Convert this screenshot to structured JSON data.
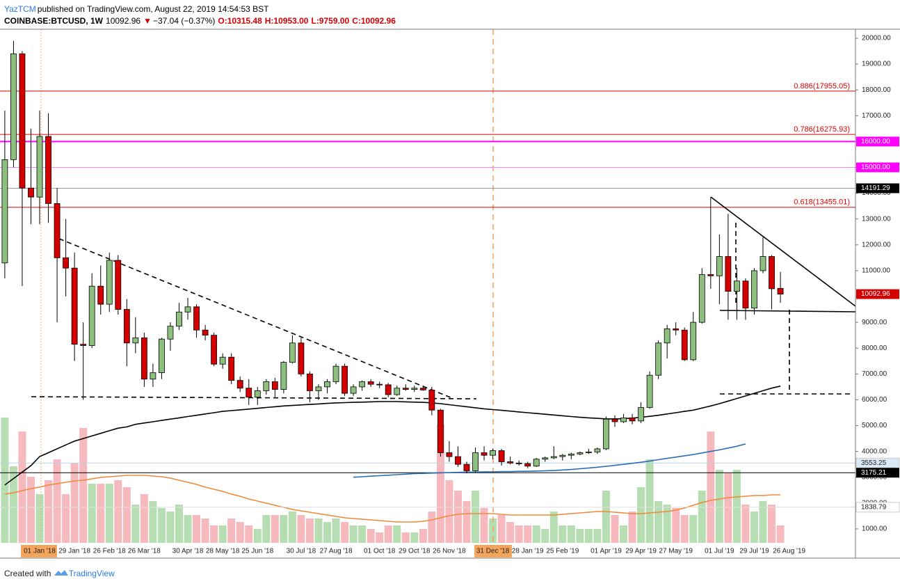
{
  "header": {
    "author": "YazTCM",
    "published": "published on TradingView.com, August 22, 2019 14:54:53 BST",
    "symbol": "COINBASE:BTCUSD, 1W",
    "last": "10092.96",
    "arrow": "▼",
    "change": "−37.04 (−0.37%)",
    "o": "O:10315.48",
    "h": "H:10953.00",
    "l": "L:9759.00",
    "c": "C:10092.96"
  },
  "footer": {
    "created": "Created with",
    "brand": "TradingView"
  },
  "chart_data": {
    "type": "candlestick",
    "categories": [
      null,
      null,
      null,
      null,
      "01 Jan '18",
      null,
      null,
      null,
      "29 Jan '18",
      null,
      null,
      null,
      "26 Feb '18",
      null,
      null,
      null,
      "26 Mar '18",
      null,
      null,
      null,
      null,
      "30 Apr '18",
      null,
      null,
      null,
      "28 May '18",
      null,
      null,
      null,
      "25 Jun '18",
      null,
      null,
      null,
      null,
      "30 Jul '18",
      null,
      null,
      null,
      "27 Aug '18",
      null,
      null,
      null,
      null,
      "01 Oct '18",
      null,
      null,
      null,
      "29 Oct '18",
      null,
      null,
      null,
      "26 Nov '18",
      null,
      null,
      null,
      null,
      "31 Dec '18",
      null,
      null,
      null,
      "28 Jan '19",
      null,
      null,
      null,
      "25 Feb '19",
      null,
      null,
      null,
      null,
      "01 Apr '19",
      null,
      null,
      null,
      "29 Apr '19",
      null,
      null,
      null,
      "27 May '19",
      null,
      null,
      null,
      null,
      "01 Jul '19",
      null,
      null,
      null,
      "29 Jul '19",
      null,
      null,
      null,
      "26 Aug '19"
    ],
    "open": [
      11300,
      15300,
      19400,
      14200,
      13850,
      16200,
      13600,
      11500,
      11100,
      8150,
      8100,
      10400,
      9700,
      11400,
      9500,
      8200,
      8400,
      6800,
      7050,
      8350,
      8850,
      9400,
      9600,
      8700,
      8500,
      7380,
      7650,
      6750,
      6450,
      6100,
      6350,
      6700,
      6400,
      7450,
      8200,
      7000,
      6350,
      6500,
      6700,
      7300,
      6250,
      6500,
      6700,
      6600,
      6580,
      6200,
      6450,
      6400,
      6450,
      6380,
      5600,
      3950,
      3800,
      3500,
      3250,
      3950,
      3850,
      4030,
      3600,
      3550,
      3530,
      3430,
      3700,
      3750,
      3800,
      3850,
      3900,
      3950,
      3980,
      4100,
      5250,
      5150,
      5300,
      5180,
      5700,
      6950,
      8200,
      8750,
      8700,
      7550,
      9000,
      10850,
      10800,
      11550,
      10200,
      10600,
      9550,
      11000,
      11550,
      10315.48,
      null
    ],
    "high": [
      17200,
      19900,
      19500,
      16500,
      17200,
      17100,
      14200,
      13000,
      11700,
      9000,
      10900,
      11200,
      11700,
      11600,
      9900,
      9200,
      8600,
      7400,
      8400,
      9000,
      9750,
      9950,
      9700,
      8900,
      8600,
      7800,
      7800,
      6900,
      6800,
      6500,
      6800,
      6850,
      7500,
      8500,
      8400,
      7100,
      6600,
      6800,
      7400,
      7400,
      6600,
      6750,
      6800,
      6700,
      6650,
      6550,
      6600,
      6550,
      6550,
      6500,
      5650,
      4400,
      4200,
      3600,
      4150,
      4200,
      4100,
      4100,
      3800,
      3650,
      3600,
      3750,
      3800,
      4200,
      3900,
      3950,
      4000,
      4100,
      4150,
      5350,
      5400,
      5450,
      5450,
      5900,
      7100,
      8300,
      8900,
      9000,
      8800,
      9400,
      11100,
      13850,
      12400,
      13200,
      11100,
      10700,
      11100,
      12300,
      11600,
      10953,
      null
    ],
    "low": [
      10700,
      15000,
      10400,
      12800,
      12800,
      12850,
      9000,
      10000,
      7500,
      6000,
      8000,
      9300,
      9400,
      9300,
      7300,
      7800,
      6500,
      6500,
      6800,
      7900,
      8700,
      9100,
      8400,
      8300,
      7300,
      7200,
      6600,
      6300,
      5800,
      5800,
      6200,
      6100,
      6250,
      7400,
      6900,
      5900,
      6000,
      6250,
      6600,
      6150,
      6150,
      6350,
      6500,
      6450,
      6100,
      6150,
      6350,
      6300,
      6350,
      5400,
      3800,
      3600,
      3400,
      3150,
      3200,
      3650,
      3700,
      3450,
      3500,
      3450,
      3350,
      3400,
      3600,
      3700,
      3650,
      3700,
      3850,
      3900,
      3900,
      4050,
      4950,
      5100,
      5050,
      5100,
      5650,
      6800,
      7600,
      8500,
      7500,
      7500,
      8950,
      10300,
      9700,
      9100,
      9100,
      9100,
      9300,
      10900,
      9500,
      9759,
      null
    ],
    "close": [
      15300,
      19400,
      14200,
      13850,
      16200,
      13600,
      11500,
      11100,
      8150,
      8100,
      10400,
      9700,
      11400,
      9500,
      8200,
      8400,
      6800,
      7050,
      8350,
      8850,
      9400,
      9600,
      8700,
      8500,
      7380,
      7650,
      6750,
      6450,
      6100,
      6350,
      6700,
      6400,
      7450,
      8200,
      7000,
      6350,
      6500,
      6700,
      7300,
      6250,
      6500,
      6700,
      6600,
      6580,
      6200,
      6450,
      6400,
      6450,
      6380,
      5600,
      3950,
      3800,
      3500,
      3250,
      3950,
      3850,
      4030,
      3600,
      3550,
      3530,
      3430,
      3700,
      3750,
      3800,
      3850,
      3900,
      3950,
      3980,
      4100,
      5250,
      5150,
      5300,
      5180,
      5700,
      6950,
      8200,
      8750,
      8700,
      7550,
      9000,
      10850,
      10800,
      11550,
      10200,
      10600,
      9550,
      11000,
      11550,
      10300,
      10092.96,
      null
    ],
    "volume": [
      180,
      110,
      160,
      95,
      70,
      90,
      120,
      70,
      115,
      165,
      85,
      85,
      85,
      90,
      80,
      55,
      70,
      60,
      50,
      45,
      55,
      40,
      40,
      35,
      25,
      25,
      35,
      30,
      25,
      20,
      40,
      40,
      40,
      45,
      40,
      35,
      35,
      30,
      35,
      30,
      25,
      25,
      20,
      15,
      25,
      25,
      15,
      15,
      20,
      45,
      170,
      90,
      75,
      60,
      75,
      50,
      35,
      40,
      30,
      25,
      25,
      25,
      20,
      45,
      25,
      25,
      20,
      20,
      20,
      75,
      40,
      25,
      45,
      80,
      120,
      60,
      55,
      50,
      40,
      40,
      75,
      160,
      105,
      100,
      105,
      55,
      45,
      60,
      55,
      25,
      null
    ],
    "volume_ma": {
      "color": "#f0883a",
      "values": [
        70,
        72,
        75,
        78,
        80,
        83,
        85,
        87,
        89,
        90,
        92,
        94,
        95,
        96,
        97,
        97,
        97,
        96,
        95,
        93,
        90,
        87,
        84,
        80,
        77,
        74,
        70,
        67,
        63,
        60,
        57,
        54,
        51,
        48,
        46,
        44,
        42,
        40,
        38,
        36,
        35,
        34,
        33,
        32,
        31,
        30,
        30,
        30,
        31,
        33,
        36,
        39,
        41,
        42,
        42,
        42,
        42,
        41,
        40,
        40,
        40,
        40,
        40,
        40,
        41,
        42,
        43,
        44,
        45,
        45,
        44,
        43,
        42,
        42,
        43,
        44,
        45,
        47,
        50,
        54,
        58,
        61,
        63,
        65,
        66,
        67,
        68,
        68,
        69,
        69,
        null
      ]
    },
    "series": [
      {
        "color": "#000000",
        "values": [
          2700,
          2950,
          3200,
          3450,
          3800,
          3950,
          4100,
          4250,
          4400,
          4500,
          4600,
          4700,
          4800,
          4900,
          4950,
          5050,
          5100,
          5150,
          5200,
          5250,
          5300,
          5350,
          5400,
          5450,
          5500,
          5550,
          5580,
          5610,
          5640,
          5670,
          5700,
          5730,
          5760,
          5780,
          5800,
          5820,
          5840,
          5860,
          5880,
          5890,
          5900,
          5910,
          5920,
          5930,
          5930,
          5930,
          5920,
          5910,
          5900,
          5880,
          5850,
          5810,
          5770,
          5730,
          5690,
          5650,
          5620,
          5590,
          5560,
          5530,
          5500,
          5470,
          5440,
          5410,
          5380,
          5350,
          5320,
          5300,
          5280,
          5260,
          5260,
          5270,
          5290,
          5320,
          5360,
          5400,
          5450,
          5500,
          5550,
          5600,
          5680,
          5760,
          5850,
          5950,
          6050,
          6150,
          6250,
          6350,
          6450,
          6530,
          null
        ]
      },
      {
        "color": "#2a6db5",
        "values": [
          null,
          null,
          null,
          null,
          null,
          null,
          null,
          null,
          null,
          null,
          null,
          null,
          null,
          null,
          null,
          null,
          null,
          null,
          null,
          null,
          null,
          null,
          null,
          null,
          null,
          null,
          null,
          null,
          null,
          null,
          null,
          null,
          null,
          null,
          null,
          null,
          null,
          null,
          null,
          null,
          3000,
          3020,
          3040,
          3060,
          3080,
          3100,
          3120,
          3140,
          3150,
          3160,
          3170,
          3180,
          3190,
          3200,
          3200,
          3210,
          3210,
          3220,
          3220,
          3230,
          3230,
          3240,
          3250,
          3260,
          3280,
          3300,
          3330,
          3360,
          3390,
          3420,
          3460,
          3500,
          3540,
          3580,
          3630,
          3680,
          3730,
          3780,
          3830,
          3880,
          3940,
          4000,
          4060,
          4130,
          4200,
          4290,
          null,
          null,
          null,
          null,
          null
        ]
      }
    ],
    "up_color": "#8dc07e",
    "down_color": "#d40000",
    "up_volume_color": "#b7ddb3",
    "down_volume_color": "#f6b9be",
    "ylim": [
      -80,
      20350
    ],
    "yticks": [
      {
        "value": 1000,
        "label": "1000.00"
      },
      {
        "value": 2000,
        "label": "2000.00"
      },
      {
        "value": 3000,
        "label": "3000.00"
      },
      {
        "value": 4000,
        "label": "4000.00"
      },
      {
        "value": 5000,
        "label": "5000.00"
      },
      {
        "value": 6000,
        "label": "6000.00"
      },
      {
        "value": 7000,
        "label": "7000.00"
      },
      {
        "value": 8000,
        "label": "8000.00"
      },
      {
        "value": 9000,
        "label": "9000.00"
      },
      {
        "value": 10000,
        "label": "10000.00"
      },
      {
        "value": 11000,
        "label": "11000.00"
      },
      {
        "value": 12000,
        "label": "12000.00"
      },
      {
        "value": 13000,
        "label": "13000.00"
      },
      {
        "value": 14000,
        "label": "14000.00"
      },
      {
        "value": 15000,
        "label": "15000.00"
      },
      {
        "value": 16000,
        "label": "16000.00"
      },
      {
        "value": 17000,
        "label": "17000.00"
      },
      {
        "value": 18000,
        "label": "18000.00"
      },
      {
        "value": 19000,
        "label": "19000.00"
      },
      {
        "value": 20000,
        "label": "20000.00"
      }
    ],
    "levels": [
      {
        "value": 17955.05,
        "label": "0.886(17955.05)",
        "color": "#e00000"
      },
      {
        "value": 16275.93,
        "label": "0.786(16275.93)",
        "color": "#e00000"
      },
      {
        "value": 16000,
        "tag": "16000.00",
        "color": "#ff00ff",
        "tag_color": "#ff00ff",
        "width": 2
      },
      {
        "value": 15000,
        "tag": "15000.00",
        "color": "#ff80ff",
        "tag_color": "#ff00ff"
      },
      {
        "value": 14191.29,
        "tag": "14191.29",
        "color": "#9a9a9a",
        "tag_color": "#000000"
      },
      {
        "value": 13455.01,
        "label": "0.618(13455.01)",
        "color": "#e00000"
      },
      {
        "value": 3553.25,
        "tag": "3553.25",
        "color": "#b8d4ee",
        "tag_color": "#dbe8f5"
      },
      {
        "value": 3175.21,
        "tag": "3175.21",
        "color": "#000000",
        "tag_color": "#000000"
      },
      {
        "value": 1838.79,
        "tag": "1838.79",
        "color": "#dddddd",
        "tag_color": "#ffffff"
      }
    ],
    "last_price": 10092.96,
    "last_price_color": "#d40000"
  }
}
